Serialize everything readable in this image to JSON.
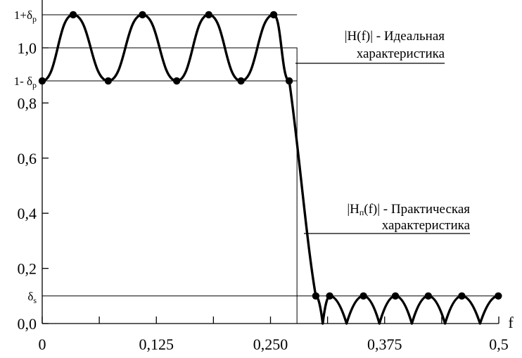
{
  "chart_data": {
    "type": "line",
    "xlabel": "f",
    "ylabel": "",
    "xlim": [
      0,
      0.5
    ],
    "ylim": [
      0,
      1.12
    ],
    "grid": false,
    "x_ticks": [
      {
        "value": 0,
        "label": "0"
      },
      {
        "value": 0.125,
        "label": "0,125"
      },
      {
        "value": 0.25,
        "label": "0,250"
      },
      {
        "value": 0.375,
        "label": "0,375"
      },
      {
        "value": 0.5,
        "label": "0,5"
      }
    ],
    "x_minor_ticks": [
      0.0625,
      0.1875,
      0.3125,
      0.4375
    ],
    "y_ticks": [
      {
        "value": 0.0,
        "label": "0,0"
      },
      {
        "value": 0.2,
        "label": "0,2"
      },
      {
        "value": 0.4,
        "label": "0,4"
      },
      {
        "value": 0.6,
        "label": "0,6"
      },
      {
        "value": 0.8,
        "label": "0,8"
      },
      {
        "value": 1.0,
        "label": "1,0"
      }
    ],
    "special_y_levels": [
      {
        "value": 1.12,
        "main": "1+δ",
        "sub": "p"
      },
      {
        "value": 0.88,
        "main": "1- δ",
        "sub": "p"
      },
      {
        "value": 0.1,
        "main": "δ",
        "sub": "s"
      }
    ],
    "ideal": {
      "cutoff": 0.279,
      "level": 1.0,
      "label_line1": "|H(f)|  -  Идеальная",
      "label_line2": "характеристика"
    },
    "practical": {
      "label_main": "|H",
      "label_sub": "п",
      "label_rest": "(f)| - Практическая",
      "label_line2": "характеристика",
      "points": [
        [
          0.0,
          0.88
        ],
        [
          0.0339,
          1.12
        ],
        [
          0.0723,
          0.88
        ],
        [
          0.1098,
          1.12
        ],
        [
          0.1473,
          0.88
        ],
        [
          0.1824,
          1.12
        ],
        [
          0.2177,
          0.88
        ],
        [
          0.2535,
          1.12
        ],
        [
          0.2705,
          0.88
        ],
        [
          0.2996,
          0.1
        ],
        [
          0.3148,
          0.1
        ],
        [
          0.3518,
          0.1
        ],
        [
          0.3868,
          0.1
        ],
        [
          0.4228,
          0.1
        ],
        [
          0.4595,
          0.1
        ],
        [
          0.4995,
          0.1
        ]
      ]
    }
  }
}
